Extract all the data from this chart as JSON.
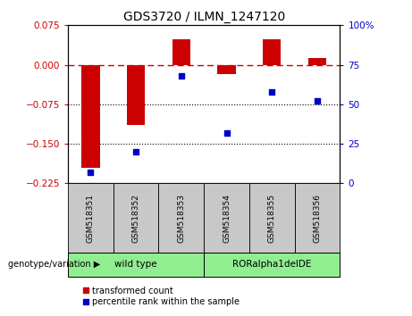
{
  "title": "GDS3720 / ILMN_1247120",
  "samples": [
    "GSM518351",
    "GSM518352",
    "GSM518353",
    "GSM518354",
    "GSM518355",
    "GSM518356"
  ],
  "transformed_count": [
    -0.195,
    -0.115,
    0.048,
    -0.018,
    0.048,
    0.012
  ],
  "percentile_rank": [
    7,
    20,
    68,
    32,
    58,
    52
  ],
  "ylim_left": [
    -0.225,
    0.075
  ],
  "ylim_right": [
    0,
    100
  ],
  "yticks_left": [
    0.075,
    0,
    -0.075,
    -0.15,
    -0.225
  ],
  "yticks_right": [
    100,
    75,
    50,
    25,
    0
  ],
  "hlines_dotted": [
    -0.075,
    -0.15
  ],
  "hline_dashed": 0,
  "group_configs": [
    {
      "indices": [
        0,
        1,
        2
      ],
      "label": "wild type",
      "color": "#90EE90"
    },
    {
      "indices": [
        3,
        4,
        5
      ],
      "label": "RORalpha1delDE",
      "color": "#90EE90"
    }
  ],
  "bar_color": "#CC0000",
  "scatter_color": "#0000CC",
  "bar_width": 0.4,
  "legend_labels": [
    "transformed count",
    "percentile rank within the sample"
  ],
  "tick_label_bg": "#CCCCCC",
  "plot_bg": "#FFFFFF",
  "fig_bg": "#FFFFFF"
}
